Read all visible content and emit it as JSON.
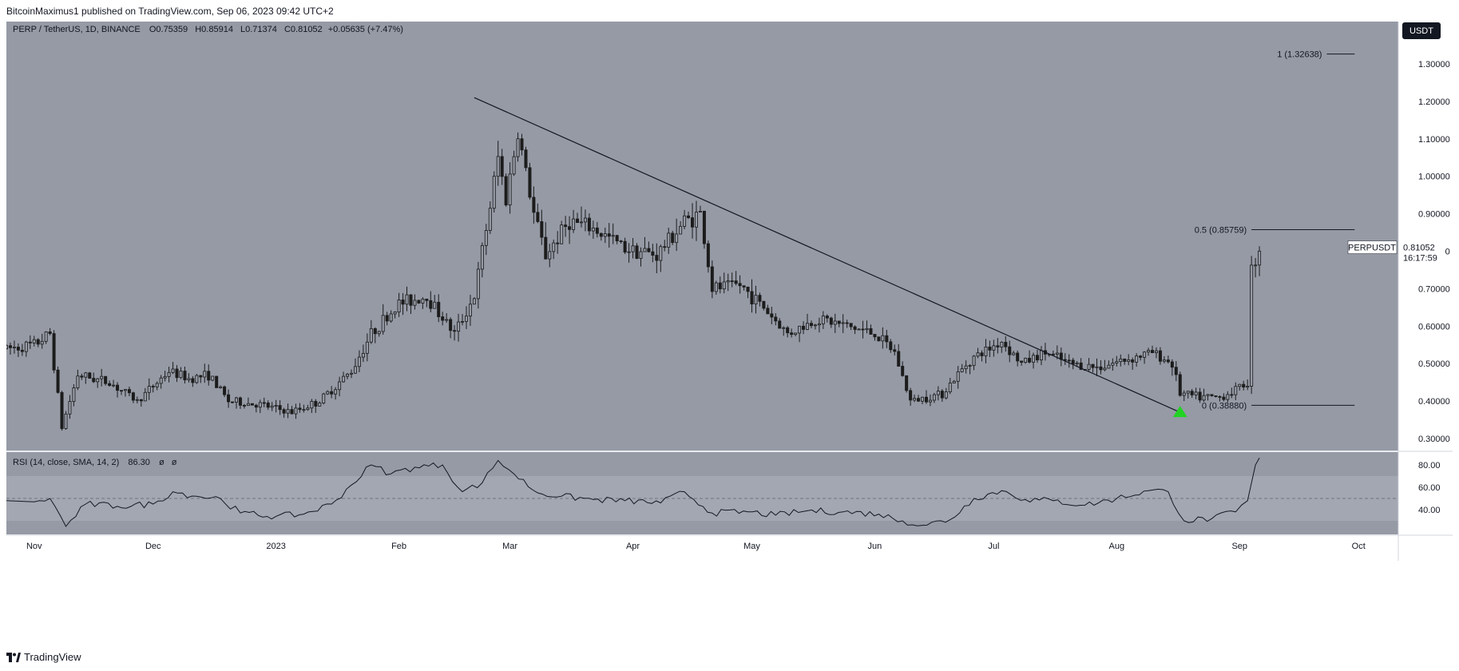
{
  "header": {
    "published_line": "BitcoinMaximus1 published on TradingView.com, Sep 06, 2023 09:42 UTC+2"
  },
  "legend": {
    "symbol": "PERP / TetherUS, 1D, BINANCE",
    "o_label": "O",
    "o_value": "0.75359",
    "h_label": "H",
    "h_value": "0.85914",
    "l_label": "L",
    "l_value": "0.71374",
    "c_label": "C",
    "c_value": "0.81052",
    "change": "+0.05635 (+7.47%)"
  },
  "currency_button": "USDT",
  "price_tag": {
    "symbol": "PERPUSDT",
    "price": "0.81052",
    "countdown": "16:17:59"
  },
  "fib": {
    "level_1": "1 (1.32638)",
    "level_05": "0.5 (0.85759)",
    "level_0": "0 (0.38880)"
  },
  "rsi_legend": {
    "label": "RSI (14, close, SMA, 14, 2)",
    "value": "86.30",
    "na1": "ø",
    "na2": "ø"
  },
  "footer": {
    "brand": "TradingView"
  },
  "colors": {
    "plot_bg": "#959aa5",
    "candle": "#1c1c1c",
    "signal_arrow": "#22d322",
    "rsi_band": "#a3a7b1"
  },
  "chart_data": [
    {
      "type": "candlestick",
      "title": "PERP / TetherUS, 1D, BINANCE",
      "x_ticks": [
        "Nov",
        "Dec",
        "2023",
        "Feb",
        "Mar",
        "Apr",
        "May",
        "Jun",
        "Jul",
        "Aug",
        "Sep",
        "Oct"
      ],
      "y_ticks": [
        "1.30000",
        "1.20000",
        "1.10000",
        "1.00000",
        "0.90000",
        "0.80000",
        "0.70000",
        "0.60000",
        "0.50000",
        "0.40000",
        "0.30000"
      ],
      "ylim": [
        0.28,
        1.38
      ],
      "close_path": [
        [
          "2022-10-25",
          0.54
        ],
        [
          "2022-11-01",
          0.55
        ],
        [
          "2022-11-05",
          0.58
        ],
        [
          "2022-11-08",
          0.33
        ],
        [
          "2022-11-12",
          0.47
        ],
        [
          "2022-11-20",
          0.45
        ],
        [
          "2022-11-27",
          0.4
        ],
        [
          "2022-12-05",
          0.48
        ],
        [
          "2022-12-10",
          0.46
        ],
        [
          "2022-12-15",
          0.47
        ],
        [
          "2022-12-20",
          0.4
        ],
        [
          "2022-12-28",
          0.39
        ],
        [
          "2023-01-05",
          0.37
        ],
        [
          "2023-01-12",
          0.4
        ],
        [
          "2023-01-20",
          0.48
        ],
        [
          "2023-01-25",
          0.58
        ],
        [
          "2023-02-01",
          0.66
        ],
        [
          "2023-02-08",
          0.68
        ],
        [
          "2023-02-15",
          0.58
        ],
        [
          "2023-02-20",
          0.68
        ],
        [
          "2023-02-24",
          0.92
        ],
        [
          "2023-02-26",
          1.05
        ],
        [
          "2023-02-28",
          0.94
        ],
        [
          "2023-03-03",
          1.12
        ],
        [
          "2023-03-07",
          0.9
        ],
        [
          "2023-03-10",
          0.79
        ],
        [
          "2023-03-16",
          0.88
        ],
        [
          "2023-03-22",
          0.86
        ],
        [
          "2023-03-30",
          0.81
        ],
        [
          "2023-04-07",
          0.79
        ],
        [
          "2023-04-14",
          0.88
        ],
        [
          "2023-04-18",
          0.9
        ],
        [
          "2023-04-21",
          0.7
        ],
        [
          "2023-04-28",
          0.71
        ],
        [
          "2023-05-04",
          0.65
        ],
        [
          "2023-05-10",
          0.58
        ],
        [
          "2023-05-18",
          0.62
        ],
        [
          "2023-05-25",
          0.6
        ],
        [
          "2023-06-01",
          0.58
        ],
        [
          "2023-06-06",
          0.53
        ],
        [
          "2023-06-10",
          0.4
        ],
        [
          "2023-06-18",
          0.42
        ],
        [
          "2023-06-25",
          0.51
        ],
        [
          "2023-07-03",
          0.56
        ],
        [
          "2023-07-08",
          0.5
        ],
        [
          "2023-07-14",
          0.53
        ],
        [
          "2023-07-20",
          0.5
        ],
        [
          "2023-07-27",
          0.49
        ],
        [
          "2023-08-03",
          0.51
        ],
        [
          "2023-08-10",
          0.53
        ],
        [
          "2023-08-15",
          0.5
        ],
        [
          "2023-08-17",
          0.42
        ],
        [
          "2023-08-22",
          0.41
        ],
        [
          "2023-08-27",
          0.41
        ],
        [
          "2023-08-31",
          0.43
        ],
        [
          "2023-09-03",
          0.45
        ],
        [
          "2023-09-04",
          0.75
        ],
        [
          "2023-09-06",
          0.81052
        ]
      ],
      "trendline": [
        [
          "2023-02-20",
          1.21
        ],
        [
          "2023-08-17",
          0.37
        ]
      ],
      "fib_levels": [
        {
          "level": 1,
          "price": 1.32638
        },
        {
          "level": 0.5,
          "price": 0.85759
        },
        {
          "level": 0,
          "price": 0.3888
        }
      ],
      "last_price": 0.81052,
      "signal_marker": {
        "date": "2023-08-17",
        "price": 0.37,
        "shape": "triangle-up"
      }
    },
    {
      "type": "line",
      "title": "RSI (14, close, SMA, 14, 2)",
      "y_ticks": [
        "80.00",
        "60.00",
        "40.00"
      ],
      "ylim": [
        20,
        90
      ],
      "band": [
        30,
        70
      ],
      "midline": 50,
      "series": [
        {
          "name": "RSI",
          "points": [
            [
              "2022-10-25",
              48
            ],
            [
              "2022-11-01",
              47
            ],
            [
              "2022-11-05",
              50
            ],
            [
              "2022-11-09",
              25
            ],
            [
              "2022-11-14",
              45
            ],
            [
              "2022-11-22",
              43
            ],
            [
              "2022-12-01",
              45
            ],
            [
              "2022-12-06",
              56
            ],
            [
              "2022-12-12",
              52
            ],
            [
              "2022-12-18",
              50
            ],
            [
              "2022-12-23",
              37
            ],
            [
              "2023-01-01",
              34
            ],
            [
              "2023-01-08",
              36
            ],
            [
              "2023-01-15",
              45
            ],
            [
              "2023-01-20",
              62
            ],
            [
              "2023-01-25",
              80
            ],
            [
              "2023-01-30",
              72
            ],
            [
              "2023-02-05",
              78
            ],
            [
              "2023-02-12",
              80
            ],
            [
              "2023-02-17",
              56
            ],
            [
              "2023-02-22",
              64
            ],
            [
              "2023-02-26",
              84
            ],
            [
              "2023-03-02",
              72
            ],
            [
              "2023-03-08",
              55
            ],
            [
              "2023-03-14",
              52
            ],
            [
              "2023-03-22",
              49
            ],
            [
              "2023-03-30",
              48
            ],
            [
              "2023-04-08",
              46
            ],
            [
              "2023-04-14",
              56
            ],
            [
              "2023-04-21",
              37
            ],
            [
              "2023-04-30",
              38
            ],
            [
              "2023-05-07",
              35
            ],
            [
              "2023-05-15",
              39
            ],
            [
              "2023-05-24",
              38
            ],
            [
              "2023-06-02",
              36
            ],
            [
              "2023-06-08",
              30
            ],
            [
              "2023-06-13",
              26
            ],
            [
              "2023-06-20",
              31
            ],
            [
              "2023-06-26",
              50
            ],
            [
              "2023-07-03",
              57
            ],
            [
              "2023-07-09",
              49
            ],
            [
              "2023-07-16",
              48
            ],
            [
              "2023-07-24",
              44
            ],
            [
              "2023-08-01",
              50
            ],
            [
              "2023-08-09",
              57
            ],
            [
              "2023-08-14",
              56
            ],
            [
              "2023-08-18",
              30
            ],
            [
              "2023-08-25",
              32
            ],
            [
              "2023-08-31",
              38
            ],
            [
              "2023-09-03",
              48
            ],
            [
              "2023-09-05",
              80
            ],
            [
              "2023-09-06",
              86.3
            ]
          ]
        }
      ]
    }
  ]
}
